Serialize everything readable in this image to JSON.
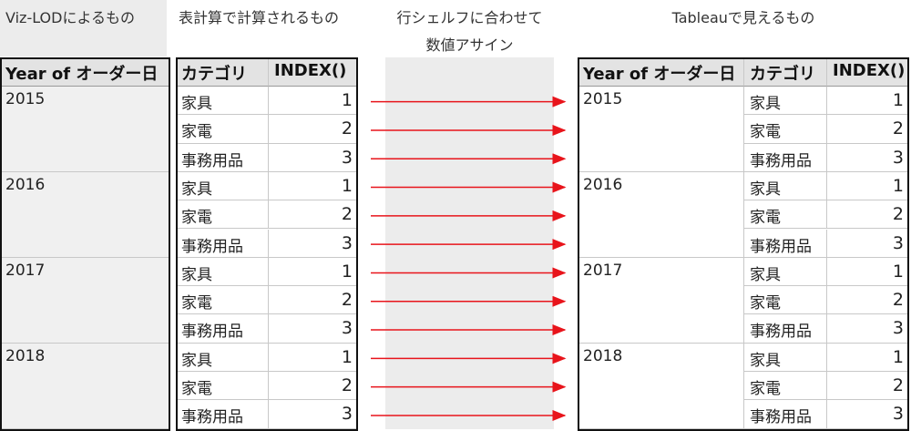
{
  "viz_lod": {
    "title": "Viz-LODによるもの",
    "header": "Year of オーダー日",
    "years": [
      "2015",
      "2016",
      "2017",
      "2018"
    ]
  },
  "table_calc": {
    "title": "表計算で計算されるもの",
    "headers": [
      "カテゴリ",
      "INDEX()"
    ],
    "rows": [
      [
        "家具",
        1
      ],
      [
        "家電",
        2
      ],
      [
        "事務用品",
        3
      ],
      [
        "家具",
        1
      ],
      [
        "家電",
        2
      ],
      [
        "事務用品",
        3
      ],
      [
        "家具",
        1
      ],
      [
        "家電",
        2
      ],
      [
        "事務用品",
        3
      ],
      [
        "家具",
        1
      ],
      [
        "家電",
        2
      ],
      [
        "事務用品",
        3
      ]
    ]
  },
  "assign": {
    "title_lines": [
      "行シェルフに合わせて",
      "数値アサイン"
    ]
  },
  "tableau": {
    "title": "Tableauで見えるもの",
    "headers": [
      "Year of オーダー日",
      "カテゴリ",
      "INDEX()"
    ],
    "groups": [
      {
        "year": "2015",
        "rows": [
          [
            "家具",
            1
          ],
          [
            "家電",
            2
          ],
          [
            "事務用品",
            3
          ]
        ]
      },
      {
        "year": "2016",
        "rows": [
          [
            "家具",
            1
          ],
          [
            "家電",
            2
          ],
          [
            "事務用品",
            3
          ]
        ]
      },
      {
        "year": "2017",
        "rows": [
          [
            "家具",
            1
          ],
          [
            "家電",
            2
          ],
          [
            "事務用品",
            3
          ]
        ]
      },
      {
        "year": "2018",
        "rows": [
          [
            "家具",
            1
          ],
          [
            "家電",
            2
          ],
          [
            "事務用品",
            3
          ]
        ]
      }
    ]
  }
}
